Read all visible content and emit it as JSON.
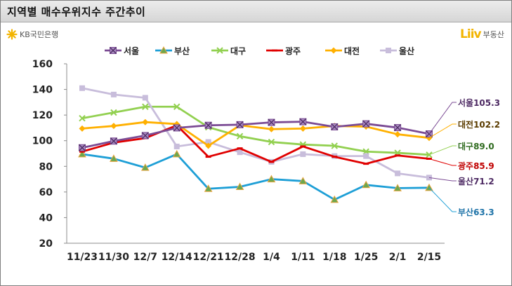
{
  "header": {
    "title": "지역별 매수우위지수 주간추이"
  },
  "logos": {
    "left_text": "KB국민은행",
    "right_mark": "Liiv",
    "right_text": "부동산"
  },
  "chart_data": {
    "type": "line",
    "categories": [
      "11/23",
      "11/30",
      "12/7",
      "12/14",
      "12/21",
      "12/28",
      "1/4",
      "1/11",
      "1/18",
      "1/25",
      "2/1",
      "2/15"
    ],
    "ylim": [
      20,
      160
    ],
    "yticks": [
      20,
      40,
      60,
      80,
      100,
      120,
      140,
      160
    ],
    "grid": false,
    "legend_position": "top",
    "series": [
      {
        "name": "서울",
        "color": "#7b4b94",
        "marker": "x-square",
        "values": [
          94.5,
          99.7,
          104.0,
          110.0,
          112.0,
          112.5,
          114.3,
          114.8,
          110.8,
          113.2,
          110.2,
          105.3
        ]
      },
      {
        "name": "부산",
        "color": "#1e9fd6",
        "marker": "triangle",
        "values": [
          89.5,
          86.0,
          79.0,
          89.5,
          62.5,
          64.0,
          70.0,
          68.5,
          54.0,
          65.5,
          63.0,
          63.3
        ]
      },
      {
        "name": "대구",
        "color": "#92d050",
        "marker": "x",
        "values": [
          117.5,
          122.0,
          126.5,
          126.5,
          110.5,
          103.5,
          99.0,
          97.0,
          96.0,
          91.5,
          90.5,
          89.0
        ]
      },
      {
        "name": "광주",
        "color": "#e00000",
        "marker": "dash",
        "values": [
          91.5,
          98.5,
          102.0,
          112.0,
          87.5,
          94.0,
          83.5,
          95.5,
          87.5,
          82.0,
          88.5,
          85.9
        ]
      },
      {
        "name": "대전",
        "color": "#ffb000",
        "marker": "diamond",
        "values": [
          109.5,
          111.5,
          114.5,
          113.0,
          96.0,
          112.0,
          109.0,
          109.5,
          111.5,
          111.0,
          105.0,
          102.2
        ]
      },
      {
        "name": "울산",
        "color": "#c8bddb",
        "marker": "square",
        "values": [
          141.0,
          136.0,
          133.5,
          95.5,
          99.0,
          91.0,
          83.5,
          89.5,
          88.0,
          88.0,
          74.5,
          71.2
        ]
      }
    ],
    "end_labels": [
      {
        "series": "서울",
        "text": "서울105.3"
      },
      {
        "series": "대전",
        "text": "대전102.2"
      },
      {
        "series": "대구",
        "text": "대구89.0"
      },
      {
        "series": "광주",
        "text": "광주85.9"
      },
      {
        "series": "울산",
        "text": "울산71.2"
      },
      {
        "series": "부산",
        "text": "부산63.3"
      }
    ]
  }
}
